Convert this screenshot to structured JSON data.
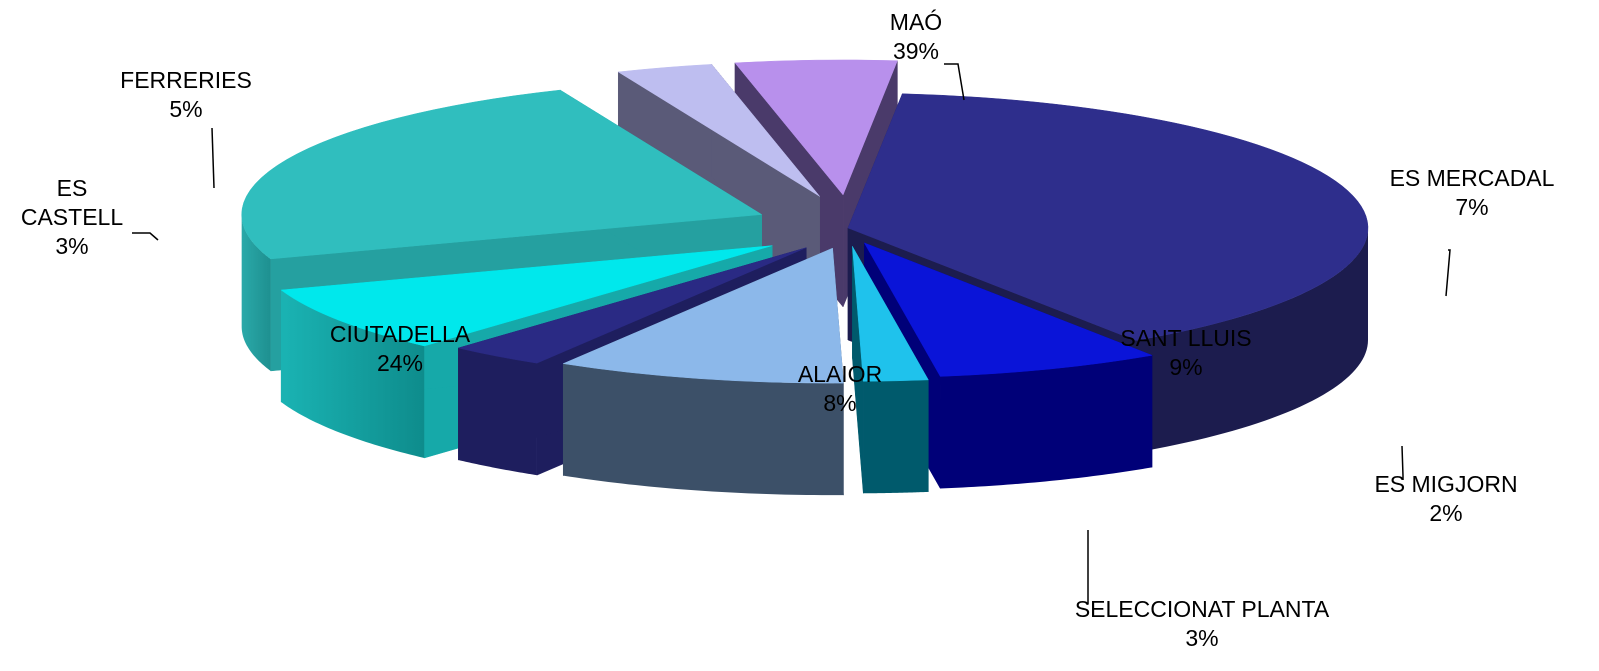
{
  "chart_data": {
    "type": "pie",
    "title": "",
    "unit": "%",
    "slices": [
      {
        "name": "MAÓ",
        "value": 39,
        "label": "39%",
        "color": "#2E2E8C",
        "side": "#1C1C4E"
      },
      {
        "name": "ES MERCADAL",
        "value": 7,
        "label": "7%",
        "color": "#0A14D8",
        "side": "#000078"
      },
      {
        "name": "ES MIGJORN",
        "value": 2,
        "label": "2%",
        "color": "#1FC2EC",
        "side": "#005A6C"
      },
      {
        "name": "SANT LLUIS",
        "value": 9,
        "label": "9%",
        "color": "#8CB8EA",
        "side": "#3C5068"
      },
      {
        "name": "SELECCIONAT PLANTA",
        "value": 3,
        "label": "3%",
        "color": "#2A2A84",
        "side": "#1E1E5E"
      },
      {
        "name": "ALAIOR",
        "value": 8,
        "label": "8%",
        "color": "#00E8EC",
        "side": "#16A9A9"
      },
      {
        "name": "CIUTADELLA",
        "value": 24,
        "label": "24%",
        "color": "#30BEBE",
        "side": "#25A0A0"
      },
      {
        "name": "ES CASTELL",
        "value": 3,
        "label": "3%",
        "color": "#BEBEF0",
        "side": "#5A5A78"
      },
      {
        "name": "FERRERIES",
        "value": 5,
        "label": "5%",
        "color": "#B890EC",
        "side": "#4A3A6A"
      }
    ],
    "name_lines": {
      "ES CASTELL": [
        "ES",
        "CASTELL"
      ]
    }
  }
}
